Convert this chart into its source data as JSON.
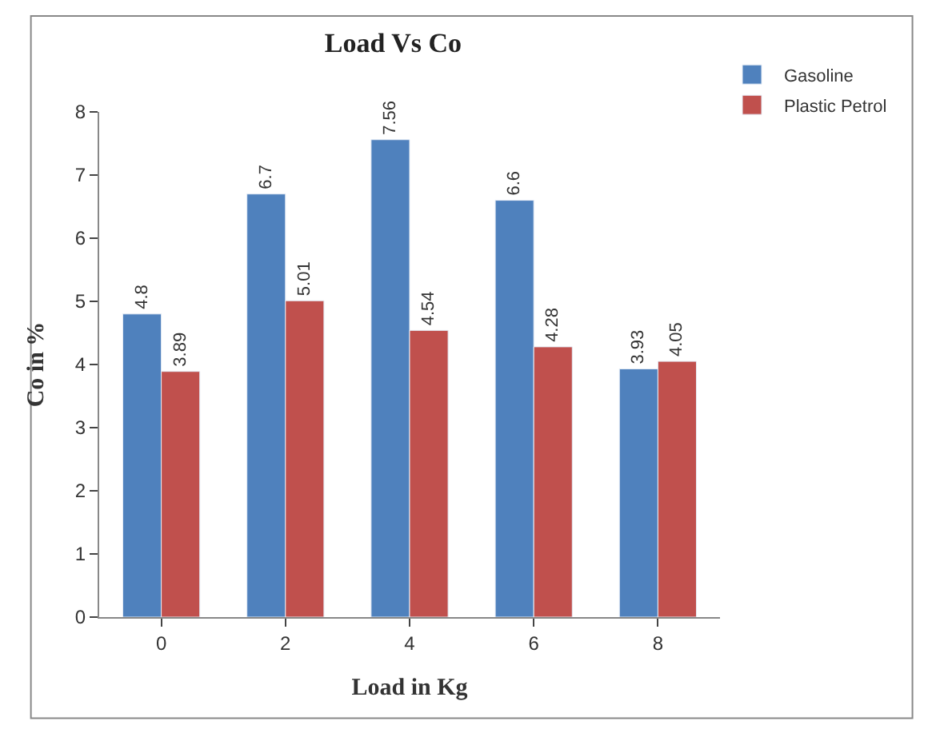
{
  "chart_data": {
    "type": "bar",
    "title": "Load Vs Co",
    "xlabel": "Load in Kg",
    "ylabel": "Co in %",
    "categories": [
      "0",
      "2",
      "4",
      "6",
      "8"
    ],
    "series": [
      {
        "name": "Gasoline",
        "color": "#4f81bd",
        "values": [
          4.8,
          6.7,
          7.56,
          6.6,
          3.93
        ]
      },
      {
        "name": "Plastic Petrol",
        "color": "#c0504d",
        "values": [
          3.89,
          5.01,
          4.54,
          4.28,
          4.05
        ]
      }
    ],
    "ylim": [
      0,
      8
    ],
    "yticks": [
      0,
      1,
      2,
      3,
      4,
      5,
      6,
      7,
      8
    ],
    "grid": false,
    "legend": "top right",
    "data_labels": true
  }
}
